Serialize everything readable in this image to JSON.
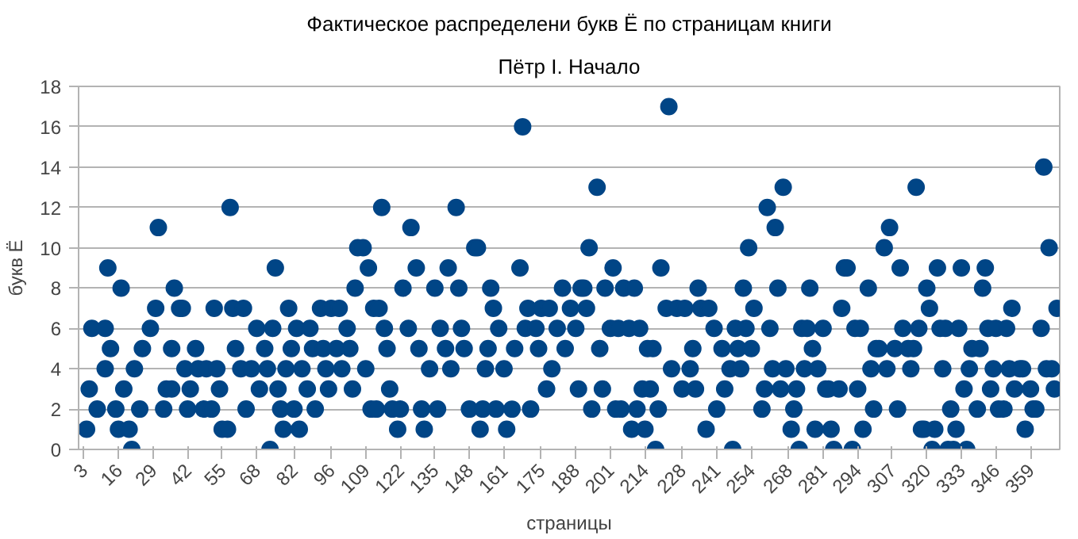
{
  "chart_data": {
    "type": "scatter",
    "title": "Фактическое распределени букв Ё по страницам книги",
    "subtitle": "Пётр I. Начало",
    "xlabel": "страницы",
    "ylabel": "букв Ё",
    "xlim": [
      1,
      370
    ],
    "xticks": [
      3,
      16,
      29,
      42,
      55,
      68,
      82,
      96,
      109,
      122,
      135,
      148,
      161,
      175,
      188,
      201,
      214,
      228,
      241,
      254,
      268,
      281,
      294,
      307,
      320,
      333,
      346,
      359
    ],
    "ylim": [
      0,
      18
    ],
    "yticks": [
      0,
      2,
      4,
      6,
      8,
      10,
      12,
      14,
      16,
      18
    ],
    "grid": "y",
    "marker": "circle",
    "series": [
      {
        "color": "#004586",
        "x": [
          4,
          5,
          6,
          8,
          11,
          11,
          12,
          13,
          15,
          16,
          17,
          18,
          20,
          21,
          22,
          24,
          25,
          28,
          30,
          31,
          33,
          34,
          36,
          36,
          37,
          39,
          40,
          41,
          42,
          43,
          45,
          46,
          48,
          49,
          51,
          52,
          53,
          54,
          55,
          57,
          58,
          59,
          60,
          62,
          63,
          64,
          66,
          68,
          69,
          71,
          72,
          73,
          74,
          75,
          76,
          77,
          78,
          79,
          80,
          81,
          82,
          83,
          84,
          85,
          87,
          88,
          89,
          90,
          92,
          93,
          94,
          95,
          96,
          98,
          99,
          100,
          102,
          103,
          104,
          105,
          106,
          108,
          109,
          110,
          111,
          112,
          113,
          114,
          115,
          116,
          117,
          118,
          119,
          121,
          122,
          123,
          125,
          126,
          128,
          129,
          130,
          131,
          133,
          135,
          136,
          137,
          139,
          140,
          141,
          143,
          144,
          145,
          146,
          148,
          150,
          151,
          152,
          153,
          154,
          155,
          156,
          157,
          158,
          159,
          161,
          162,
          164,
          165,
          167,
          168,
          169,
          170,
          171,
          173,
          174,
          175,
          177,
          178,
          179,
          181,
          183,
          184,
          186,
          188,
          189,
          190,
          191,
          192,
          193,
          194,
          196,
          197,
          198,
          199,
          201,
          202,
          203,
          204,
          205,
          206,
          208,
          209,
          210,
          211,
          212,
          213,
          214,
          215,
          216,
          217,
          218,
          219,
          220,
          222,
          223,
          224,
          226,
          228,
          229,
          231,
          232,
          233,
          234,
          235,
          237,
          238,
          240,
          241,
          243,
          244,
          246,
          247,
          248,
          249,
          250,
          251,
          252,
          253,
          254,
          255,
          258,
          259,
          260,
          261,
          262,
          263,
          264,
          265,
          266,
          267,
          269,
          270,
          271,
          272,
          273,
          274,
          275,
          276,
          277,
          278,
          279,
          281,
          282,
          283,
          284,
          285,
          287,
          288,
          289,
          290,
          292,
          293,
          294,
          295,
          296,
          298,
          299,
          300,
          301,
          302,
          304,
          305,
          306,
          308,
          309,
          310,
          311,
          313,
          314,
          315,
          316,
          317,
          318,
          319,
          320,
          321,
          322,
          323,
          324,
          325,
          326,
          327,
          328,
          329,
          330,
          331,
          332,
          333,
          334,
          335,
          336,
          337,
          339,
          340,
          341,
          342,
          343,
          344,
          345,
          346,
          347,
          349,
          350,
          351,
          352,
          353,
          355,
          356,
          357,
          359,
          360,
          361,
          363,
          364,
          365,
          366,
          367,
          368,
          369
        ],
        "values": [
          1,
          3,
          6,
          2,
          6,
          4,
          9,
          5,
          2,
          1,
          8,
          3,
          1,
          0,
          4,
          2,
          5,
          6,
          7,
          11,
          2,
          3,
          5,
          3,
          8,
          7,
          7,
          4,
          2,
          3,
          5,
          4,
          2,
          4,
          2,
          7,
          4,
          3,
          1,
          1,
          12,
          7,
          5,
          4,
          7,
          2,
          4,
          6,
          3,
          5,
          4,
          0,
          6,
          9,
          3,
          2,
          1,
          4,
          7,
          5,
          2,
          6,
          1,
          4,
          3,
          6,
          5,
          2,
          7,
          5,
          4,
          3,
          7,
          5,
          7,
          4,
          6,
          5,
          3,
          8,
          10,
          10,
          4,
          9,
          2,
          7,
          2,
          7,
          12,
          6,
          5,
          3,
          2,
          1,
          2,
          8,
          6,
          11,
          9,
          5,
          2,
          1,
          4,
          8,
          2,
          6,
          5,
          9,
          4,
          12,
          8,
          6,
          5,
          2,
          10,
          10,
          1,
          2,
          4,
          5,
          8,
          7,
          2,
          6,
          4,
          1,
          2,
          5,
          9,
          16,
          6,
          7,
          2,
          6,
          5,
          7,
          3,
          7,
          4,
          6,
          8,
          5,
          7,
          6,
          3,
          8,
          8,
          7,
          10,
          2,
          13,
          5,
          3,
          8,
          6,
          9,
          2,
          6,
          2,
          8,
          6,
          1,
          8,
          2,
          6,
          3,
          1,
          5,
          3,
          5,
          0,
          2,
          9,
          7,
          17,
          4,
          7,
          3,
          7,
          4,
          5,
          3,
          8,
          7,
          1,
          7,
          6,
          2,
          5,
          3,
          4,
          0,
          6,
          5,
          4,
          8,
          6,
          10,
          5,
          7,
          2,
          3,
          12,
          6,
          4,
          11,
          8,
          3,
          13,
          4,
          1,
          2,
          3,
          0,
          6,
          4,
          6,
          8,
          5,
          1,
          4,
          6,
          3,
          3,
          1,
          0,
          3,
          7,
          9,
          9,
          0,
          6,
          3,
          6,
          1,
          8,
          4,
          2,
          5,
          5,
          10,
          4,
          11,
          5,
          2,
          9,
          6,
          5,
          4,
          5,
          13,
          6,
          1,
          1,
          8,
          7,
          0,
          1,
          9,
          6,
          4,
          6,
          0,
          2,
          0,
          1,
          6,
          9,
          3,
          0,
          4,
          5,
          2,
          5,
          8,
          9,
          6,
          3,
          4,
          6,
          2,
          2,
          6,
          4,
          7,
          3,
          4,
          4,
          1,
          3,
          2,
          2,
          6,
          14,
          4,
          10,
          4,
          3,
          7
        ]
      }
    ]
  }
}
